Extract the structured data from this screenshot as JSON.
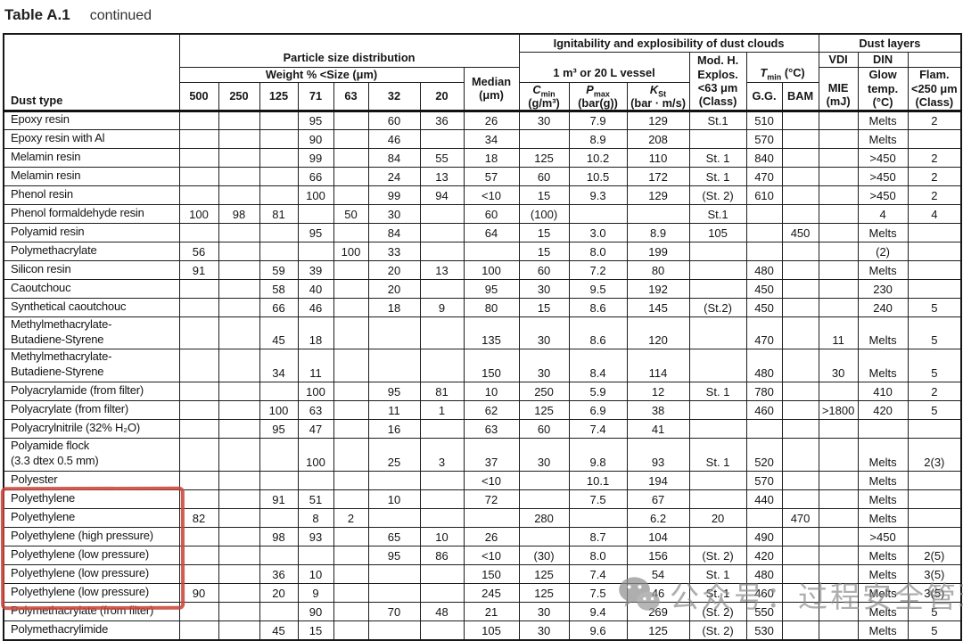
{
  "title": {
    "table_label": "Table A.1",
    "continued": "continued"
  },
  "highlight_color": "#c8473b",
  "header": {
    "dust_type": "Dust type",
    "particle_group": "Particle size distribution",
    "weight_group": "Weight % <Size (μm)",
    "sizes": [
      "500",
      "250",
      "125",
      "71",
      "63",
      "32",
      "20"
    ],
    "median_line1": "Median",
    "median_line2": "(μm)",
    "ignitability_group": "Ignitability and explosibility of dust clouds",
    "vessel_group": "1 m³ or 20 L vessel",
    "cmin_main": "C",
    "cmin_sub": "min",
    "cmin_unit": "(g/m³)",
    "pmax_main": "P",
    "pmax_sub": "max",
    "pmax_unit": "(bar(g))",
    "kst_main": "K",
    "kst_sub": "St",
    "kst_unit": "(bar · m/s)",
    "modh": "Mod. H.\nExplos.\n<63 μm\n(Class)",
    "tmin_main": "T",
    "tmin_sub": "min",
    "tmin_unit": "(°C)",
    "gg": "G.G.",
    "bam": "BAM",
    "dust_layers_group": "Dust layers",
    "vdi": "VDI",
    "din": "DIN",
    "mie": "MIE\n(mJ)",
    "glow": "Glow\ntemp.\n(°C)",
    "flam": "Flam.\n<250 μm\n(Class)"
  },
  "rows": [
    {
      "name": "Epoxy resin",
      "highlight": false,
      "values": [
        "",
        "",
        "",
        "95",
        "",
        "60",
        "36",
        "26",
        "30",
        "7.9",
        "129",
        "St.1",
        "510",
        "",
        "",
        "Melts",
        "2"
      ]
    },
    {
      "name": "Epoxy resin with Al",
      "highlight": false,
      "values": [
        "",
        "",
        "",
        "90",
        "",
        "46",
        "",
        "34",
        "",
        "8.9",
        "208",
        "",
        "570",
        "",
        "",
        "Melts",
        ""
      ]
    },
    {
      "name": "Melamin resin",
      "highlight": false,
      "values": [
        "",
        "",
        "",
        "99",
        "",
        "84",
        "55",
        "18",
        "125",
        "10.2",
        "110",
        "St. 1",
        "840",
        "",
        "",
        ">450",
        "2"
      ]
    },
    {
      "name": "Melamin resin",
      "highlight": false,
      "values": [
        "",
        "",
        "",
        "66",
        "",
        "24",
        "13",
        "57",
        "60",
        "10.5",
        "172",
        "St. 1",
        "470",
        "",
        "",
        ">450",
        "2"
      ]
    },
    {
      "name": "Phenol resin",
      "highlight": false,
      "values": [
        "",
        "",
        "",
        "100",
        "",
        "99",
        "94",
        "<10",
        "15",
        "9.3",
        "129",
        "(St. 2)",
        "610",
        "",
        "",
        ">450",
        "2"
      ]
    },
    {
      "name": "Phenol formaldehyde resin",
      "highlight": false,
      "values": [
        "100",
        "98",
        "81",
        "",
        "50",
        "30",
        "",
        "60",
        "(100)",
        "",
        "",
        "St.1",
        "",
        "",
        "",
        "4",
        "4"
      ]
    },
    {
      "name": "Polyamid resin",
      "highlight": false,
      "values": [
        "",
        "",
        "",
        "95",
        "",
        "84",
        "",
        "64",
        "15",
        "3.0",
        "8.9",
        "105",
        "",
        "450",
        "",
        "Melts",
        ""
      ]
    },
    {
      "name": "Polymethacrylate",
      "highlight": false,
      "values": [
        "56",
        "",
        "",
        "",
        "100",
        "33",
        "",
        "",
        "15",
        "8.0",
        "199",
        "",
        "",
        "",
        "",
        "(2)",
        ""
      ]
    },
    {
      "name": "Silicon resin",
      "highlight": false,
      "values": [
        "91",
        "",
        "59",
        "39",
        "",
        "20",
        "13",
        "100",
        "60",
        "7.2",
        "80",
        "",
        "480",
        "",
        "",
        "Melts",
        ""
      ]
    },
    {
      "name": "Caoutchouc",
      "highlight": false,
      "values": [
        "",
        "",
        "58",
        "40",
        "",
        "20",
        "",
        "95",
        "30",
        "9.5",
        "192",
        "",
        "450",
        "",
        "",
        "230",
        ""
      ]
    },
    {
      "name": "Synthetical caoutchouc",
      "highlight": false,
      "values": [
        "",
        "",
        "66",
        "46",
        "",
        "18",
        "9",
        "80",
        "15",
        "8.6",
        "145",
        "(St.2)",
        "450",
        "",
        "",
        "240",
        "5"
      ]
    },
    {
      "name": "Methylmethacrylate-\nButadiene-Styrene",
      "highlight": false,
      "values": [
        "",
        "",
        "45",
        "18",
        "",
        "",
        "",
        "135",
        "30",
        "8.6",
        "120",
        "",
        "470",
        "",
        "11",
        "Melts",
        "5"
      ]
    },
    {
      "name": "Methylmethacrylate-\nButadiene-Styrene",
      "highlight": false,
      "values": [
        "",
        "",
        "34",
        "11",
        "",
        "",
        "",
        "150",
        "30",
        "8.4",
        "114",
        "",
        "480",
        "",
        "30",
        "Melts",
        "5"
      ]
    },
    {
      "name": "Polyacrylamide (from filter)",
      "highlight": false,
      "values": [
        "",
        "",
        "",
        "100",
        "",
        "95",
        "81",
        "10",
        "250",
        "5.9",
        "12",
        "St. 1",
        "780",
        "",
        "",
        "410",
        "2"
      ]
    },
    {
      "name": "Polyacrylate (from filter)",
      "highlight": false,
      "values": [
        "",
        "",
        "100",
        "63",
        "",
        "11",
        "1",
        "62",
        "125",
        "6.9",
        "38",
        "",
        "460",
        "",
        ">1800",
        "420",
        "5"
      ]
    },
    {
      "name": "Polyacrylnitrile (32% H₂O)",
      "highlight": false,
      "values": [
        "",
        "",
        "95",
        "47",
        "",
        "16",
        "",
        "63",
        "60",
        "7.4",
        "41",
        "",
        "",
        "",
        "",
        "",
        ""
      ]
    },
    {
      "name": "Polyamide flock\n(3.3 dtex 0.5 mm)",
      "highlight": false,
      "values": [
        "",
        "",
        "",
        "100",
        "",
        "25",
        "3",
        "37",
        "30",
        "9.8",
        "93",
        "St. 1",
        "520",
        "",
        "",
        "Melts",
        "2(3)"
      ]
    },
    {
      "name": "Polyester",
      "highlight": false,
      "values": [
        "",
        "",
        "",
        "",
        "",
        "",
        "",
        "<10",
        "",
        "10.1",
        "194",
        "",
        "570",
        "",
        "",
        "Melts",
        ""
      ]
    },
    {
      "name": "Polyethylene",
      "highlight": true,
      "values": [
        "",
        "",
        "91",
        "51",
        "",
        "10",
        "",
        "72",
        "",
        "7.5",
        "67",
        "",
        "440",
        "",
        "",
        "Melts",
        ""
      ]
    },
    {
      "name": "Polyethylene",
      "highlight": true,
      "values": [
        "82",
        "",
        "",
        "8",
        "2",
        "",
        "",
        "",
        "280",
        "",
        "6.2",
        "20",
        "",
        "470",
        "",
        "Melts",
        ""
      ]
    },
    {
      "name": "Polyethylene (high pressure)",
      "highlight": true,
      "values": [
        "",
        "",
        "98",
        "93",
        "",
        "65",
        "10",
        "26",
        "",
        "8.7",
        "104",
        "",
        "490",
        "",
        "",
        ">450",
        ""
      ]
    },
    {
      "name": "Polyethylene (low pressure)",
      "highlight": true,
      "values": [
        "",
        "",
        "",
        "",
        "",
        "95",
        "86",
        "<10",
        "(30)",
        "8.0",
        "156",
        "(St. 2)",
        "420",
        "",
        "",
        "Melts",
        "2(5)"
      ]
    },
    {
      "name": "Polyethylene (low pressure)",
      "highlight": true,
      "values": [
        "",
        "",
        "36",
        "10",
        "",
        "",
        "",
        "150",
        "125",
        "7.4",
        "54",
        "St. 1",
        "480",
        "",
        "",
        "Melts",
        "3(5)"
      ]
    },
    {
      "name": "Polyethylene (low pressure)",
      "highlight": true,
      "values": [
        "90",
        "",
        "20",
        "9",
        "",
        "",
        "",
        "245",
        "125",
        "7.5",
        "46",
        "St. 1",
        "460",
        "",
        "",
        "Melts",
        "3(5)"
      ]
    },
    {
      "name": "Polymethacrylate (from filter)",
      "highlight": false,
      "values": [
        "",
        "",
        "",
        "90",
        "",
        "70",
        "48",
        "21",
        "30",
        "9.4",
        "269",
        "(St. 2)",
        "550",
        "",
        "",
        "Melts",
        "5"
      ]
    },
    {
      "name": "Polymethacrylimide",
      "highlight": false,
      "values": [
        "",
        "",
        "45",
        "15",
        "",
        "",
        "",
        "105",
        "30",
        "9.6",
        "125",
        "(St. 2)",
        "530",
        "",
        "",
        "Melts",
        "5"
      ]
    }
  ],
  "watermark": {
    "icon": "wechat-logo-icon",
    "text": "公众号：过程安全管理"
  }
}
